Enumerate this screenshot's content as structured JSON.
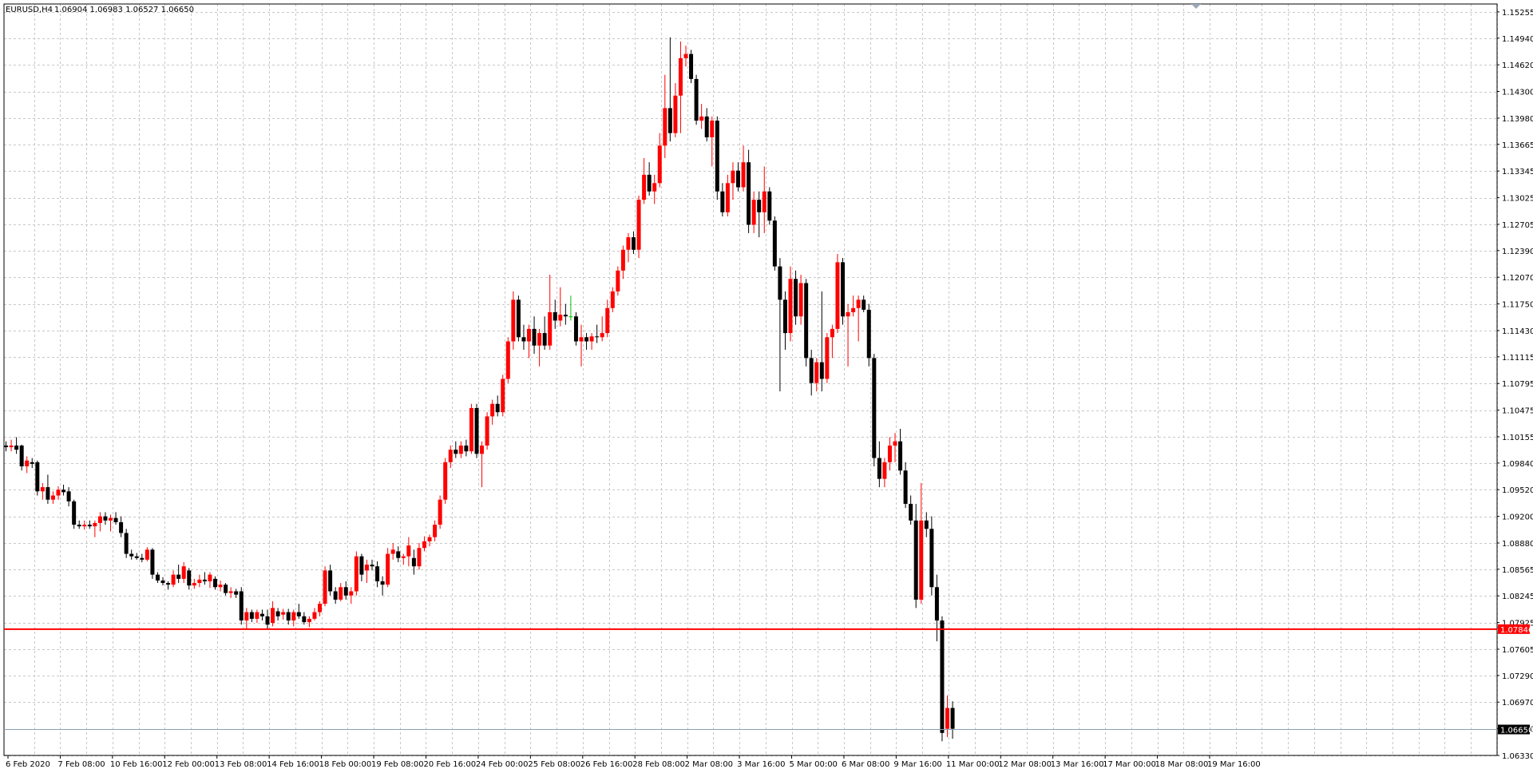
{
  "header": {
    "symbol": "EURUSD,H4",
    "ohlc": "1.06904 1.06983 1.06527 1.06650"
  },
  "price_tags": {
    "bid_line_label": "1.07846",
    "last_price_label": "1.06650"
  },
  "colors": {
    "background": "#ffffff",
    "grid": "#c8c8c8",
    "bull_candle": "#ff0000",
    "bear_candle": "#000000",
    "doji_candle": "#00c000",
    "horizontal_line": "#ff0000",
    "last_price_line": "#8aa0b4"
  },
  "chart_data": {
    "type": "candlestick",
    "title": "",
    "symbol": "EURUSD",
    "timeframe": "H4",
    "ylim": [
      1.0633,
      1.1535
    ],
    "y_ticks": [
      "1.15255",
      "1.14940",
      "1.14620",
      "1.14300",
      "1.13980",
      "1.13665",
      "1.13345",
      "1.13025",
      "1.12705",
      "1.12390",
      "1.12070",
      "1.11750",
      "1.11430",
      "1.11115",
      "1.10795",
      "1.10475",
      "1.10155",
      "1.09840",
      "1.09520",
      "1.09200",
      "1.08880",
      "1.08565",
      "1.08245",
      "1.07925",
      "1.07605",
      "1.07290",
      "1.06970",
      "1.06650",
      "1.06330"
    ],
    "x_ticks": [
      "6 Feb 2020",
      "7 Feb 08:00",
      "10 Feb 16:00",
      "12 Feb 00:00",
      "13 Feb 08:00",
      "14 Feb 16:00",
      "18 Feb 00:00",
      "19 Feb 08:00",
      "20 Feb 16:00",
      "24 Feb 00:00",
      "25 Feb 08:00",
      "26 Feb 16:00",
      "28 Feb 08:00",
      "2 Mar 08:00",
      "3 Mar 16:00",
      "5 Mar 00:00",
      "6 Mar 08:00",
      "9 Mar 16:00",
      "11 Mar 00:00",
      "12 Mar 08:00",
      "13 Mar 16:00",
      "17 Mar 00:00",
      "18 Mar 08:00",
      "19 Mar 16:00"
    ],
    "horizontal_line": 1.07846,
    "last_price": 1.0665,
    "grid": true,
    "candles": [
      [
        1.1005,
        1.101,
        1.0998,
        1.1003
      ],
      [
        1.1003,
        1.1012,
        1.0998,
        1.1005
      ],
      [
        1.1005,
        1.1015,
        1.0995,
        1.1
      ],
      [
        1.1005,
        1.1006,
        1.0975,
        1.098
      ],
      [
        1.098,
        1.0992,
        1.0972,
        1.0987
      ],
      [
        1.0985,
        1.099,
        1.0978,
        1.0983
      ],
      [
        1.0985,
        1.0987,
        1.0945,
        1.095
      ],
      [
        1.095,
        1.096,
        1.094,
        1.0955
      ],
      [
        1.0955,
        1.097,
        1.0935,
        1.094
      ],
      [
        1.094,
        1.095,
        1.0935,
        1.0945
      ],
      [
        1.0945,
        1.0956,
        1.094,
        1.0952
      ],
      [
        1.0952,
        1.0958,
        1.0945,
        1.0949
      ],
      [
        1.095,
        1.0955,
        1.0932,
        1.0938
      ],
      [
        1.0938,
        1.094,
        1.0905,
        1.091
      ],
      [
        1.091,
        1.0915,
        1.0905,
        1.0908
      ],
      [
        1.0908,
        1.0915,
        1.0904,
        1.091
      ],
      [
        1.091,
        1.0915,
        1.0905,
        1.0908
      ],
      [
        1.0908,
        1.0915,
        1.0895,
        1.0912
      ],
      [
        1.0912,
        1.0925,
        1.0902,
        1.092
      ],
      [
        1.092,
        1.0925,
        1.091,
        1.0915
      ],
      [
        1.0915,
        1.0922,
        1.0902,
        1.0918
      ],
      [
        1.0918,
        1.0925,
        1.091,
        1.0913
      ],
      [
        1.0913,
        1.092,
        1.0895,
        1.09
      ],
      [
        1.09,
        1.0905,
        1.087,
        1.0875
      ],
      [
        1.0875,
        1.088,
        1.0868,
        1.0872
      ],
      [
        1.0872,
        1.0876,
        1.0868,
        1.087
      ],
      [
        1.087,
        1.0875,
        1.0865,
        1.0868
      ],
      [
        1.0868,
        1.0883,
        1.0866,
        1.088
      ],
      [
        1.088,
        1.0882,
        1.0845,
        1.085
      ],
      [
        1.085,
        1.0853,
        1.084,
        1.0843
      ],
      [
        1.0843,
        1.0847,
        1.0837,
        1.084
      ],
      [
        1.084,
        1.0842,
        1.0832,
        1.0838
      ],
      [
        1.0838,
        1.0855,
        1.0835,
        1.085
      ],
      [
        1.085,
        1.0862,
        1.084,
        1.0845
      ],
      [
        1.0845,
        1.0865,
        1.084,
        1.086
      ],
      [
        1.0855,
        1.0858,
        1.0832,
        1.0837
      ],
      [
        1.0837,
        1.0845,
        1.0833,
        1.084
      ],
      [
        1.084,
        1.085,
        1.0835,
        1.0844
      ],
      [
        1.0844,
        1.0853,
        1.0838,
        1.0842
      ],
      [
        1.0842,
        1.0853,
        1.0834,
        1.085
      ],
      [
        1.0845,
        1.0848,
        1.0832,
        1.0835
      ],
      [
        1.0835,
        1.0843,
        1.083,
        1.0838
      ],
      [
        1.0838,
        1.084,
        1.0825,
        1.0828
      ],
      [
        1.0828,
        1.0835,
        1.0822,
        1.083
      ],
      [
        1.083,
        1.0833,
        1.0822,
        1.0826
      ],
      [
        1.083,
        1.0835,
        1.079,
        1.0795
      ],
      [
        1.0795,
        1.081,
        1.0785,
        1.0805
      ],
      [
        1.0805,
        1.0808,
        1.0793,
        1.0797
      ],
      [
        1.0797,
        1.0808,
        1.0792,
        1.0805
      ],
      [
        1.0803,
        1.0808,
        1.0795,
        1.08
      ],
      [
        1.08,
        1.0808,
        1.0785,
        1.079
      ],
      [
        1.0792,
        1.0818,
        1.0788,
        1.081
      ],
      [
        1.0806,
        1.081,
        1.0795,
        1.08
      ],
      [
        1.0802,
        1.0809,
        1.0796,
        1.0805
      ],
      [
        1.0805,
        1.0809,
        1.079,
        1.0795
      ],
      [
        1.0795,
        1.0808,
        1.0788,
        1.0805
      ],
      [
        1.0805,
        1.0815,
        1.0797,
        1.08
      ],
      [
        1.08,
        1.0805,
        1.079,
        1.0793
      ],
      [
        1.0793,
        1.08,
        1.0787,
        1.0797
      ],
      [
        1.0797,
        1.081,
        1.0795,
        1.0805
      ],
      [
        1.0805,
        1.0818,
        1.08,
        1.0815
      ],
      [
        1.0815,
        1.086,
        1.0812,
        1.0855
      ],
      [
        1.0855,
        1.0862,
        1.0825,
        1.083
      ],
      [
        1.083,
        1.0835,
        1.0815,
        1.082
      ],
      [
        1.082,
        1.084,
        1.0818,
        1.0835
      ],
      [
        1.0835,
        1.0842,
        1.082,
        1.0825
      ],
      [
        1.0825,
        1.0835,
        1.0815,
        1.083
      ],
      [
        1.083,
        1.0878,
        1.0825,
        1.0872
      ],
      [
        1.0872,
        1.0875,
        1.0842,
        1.085
      ],
      [
        1.0855,
        1.0868,
        1.084,
        1.0862
      ],
      [
        1.0862,
        1.0868,
        1.0855,
        1.086
      ],
      [
        1.086,
        1.0866,
        1.0835,
        1.0842
      ],
      [
        1.0842,
        1.0848,
        1.0825,
        1.0838
      ],
      [
        1.0838,
        1.0882,
        1.0835,
        1.0875
      ],
      [
        1.0875,
        1.0888,
        1.0868,
        1.088
      ],
      [
        1.0878,
        1.0884,
        1.0865,
        1.087
      ],
      [
        1.087,
        1.0875,
        1.0862,
        1.0872
      ],
      [
        1.0872,
        1.0895,
        1.086,
        1.0885
      ],
      [
        1.087,
        1.088,
        1.085,
        1.086
      ],
      [
        1.086,
        1.0888,
        1.0856,
        1.0882
      ],
      [
        1.0882,
        1.0896,
        1.0878,
        1.089
      ],
      [
        1.089,
        1.0898,
        1.0884,
        1.0895
      ],
      [
        1.0895,
        1.0915,
        1.089,
        1.091
      ],
      [
        1.091,
        1.0945,
        1.0905,
        1.094
      ],
      [
        1.094,
        1.099,
        1.0935,
        1.0985
      ],
      [
        1.0985,
        1.1005,
        1.0978,
        1.1
      ],
      [
        1.1,
        1.101,
        1.099,
        1.0995
      ],
      [
        1.0995,
        1.101,
        1.099,
        1.1005
      ],
      [
        1.1005,
        1.1012,
        1.0992,
        1.0998
      ],
      [
        1.0998,
        1.1055,
        1.0995,
        1.105
      ],
      [
        1.105,
        1.1055,
        1.099,
        1.0995
      ],
      [
        1.0995,
        1.101,
        1.0955,
        1.1005
      ],
      [
        1.1005,
        1.1045,
        1.1,
        1.104
      ],
      [
        1.104,
        1.106,
        1.103,
        1.1055
      ],
      [
        1.1055,
        1.1065,
        1.104,
        1.1045
      ],
      [
        1.1045,
        1.109,
        1.104,
        1.1085
      ],
      [
        1.1085,
        1.1135,
        1.108,
        1.113
      ],
      [
        1.113,
        1.119,
        1.112,
        1.118
      ],
      [
        1.118,
        1.1185,
        1.113,
        1.1135
      ],
      [
        1.1135,
        1.115,
        1.112,
        1.113
      ],
      [
        1.113,
        1.115,
        1.111,
        1.1145
      ],
      [
        1.1145,
        1.116,
        1.1115,
        1.1125
      ],
      [
        1.1125,
        1.1145,
        1.11,
        1.114
      ],
      [
        1.114,
        1.116,
        1.112,
        1.1125
      ],
      [
        1.1125,
        1.121,
        1.112,
        1.1165
      ],
      [
        1.1165,
        1.118,
        1.1145,
        1.1155
      ],
      [
        1.1155,
        1.1195,
        1.1148,
        1.1162
      ],
      [
        1.1162,
        1.1175,
        1.115,
        1.116
      ],
      [
        1.116,
        1.1185,
        1.1155,
        1.116
      ],
      [
        1.116,
        1.1165,
        1.1125,
        1.113
      ],
      [
        1.113,
        1.115,
        1.11,
        1.1135
      ],
      [
        1.1135,
        1.114,
        1.112,
        1.113
      ],
      [
        1.113,
        1.114,
        1.112,
        1.1136
      ],
      [
        1.1136,
        1.115,
        1.1128,
        1.1135
      ],
      [
        1.1135,
        1.116,
        1.113,
        1.114
      ],
      [
        1.114,
        1.118,
        1.1135,
        1.117
      ],
      [
        1.117,
        1.1195,
        1.1165,
        1.119
      ],
      [
        1.119,
        1.122,
        1.1185,
        1.1215
      ],
      [
        1.1215,
        1.1245,
        1.1205,
        1.124
      ],
      [
        1.124,
        1.126,
        1.1225,
        1.1255
      ],
      [
        1.1255,
        1.1262,
        1.1235,
        1.124
      ],
      [
        1.124,
        1.1305,
        1.123,
        1.13
      ],
      [
        1.13,
        1.135,
        1.1295,
        1.133
      ],
      [
        1.133,
        1.1345,
        1.1305,
        1.131
      ],
      [
        1.131,
        1.133,
        1.1295,
        1.132
      ],
      [
        1.132,
        1.138,
        1.1315,
        1.1365
      ],
      [
        1.1365,
        1.145,
        1.135,
        1.141
      ],
      [
        1.141,
        1.1495,
        1.137,
        1.138
      ],
      [
        1.138,
        1.144,
        1.1375,
        1.1425
      ],
      [
        1.1425,
        1.149,
        1.138,
        1.147
      ],
      [
        1.147,
        1.1485,
        1.146,
        1.1475
      ],
      [
        1.1475,
        1.148,
        1.144,
        1.1445
      ],
      [
        1.1445,
        1.145,
        1.139,
        1.1395
      ],
      [
        1.1395,
        1.1415,
        1.1385,
        1.14
      ],
      [
        1.14,
        1.141,
        1.137,
        1.1375
      ],
      [
        1.1375,
        1.14,
        1.134,
        1.1395
      ],
      [
        1.1395,
        1.14,
        1.13,
        1.131
      ],
      [
        1.131,
        1.132,
        1.128,
        1.1285
      ],
      [
        1.1285,
        1.133,
        1.128,
        1.132
      ],
      [
        1.132,
        1.1345,
        1.13,
        1.1335
      ],
      [
        1.1335,
        1.1345,
        1.131,
        1.1315
      ],
      [
        1.1315,
        1.1365,
        1.131,
        1.1345
      ],
      [
        1.1345,
        1.136,
        1.126,
        1.127
      ],
      [
        1.127,
        1.131,
        1.126,
        1.13
      ],
      [
        1.13,
        1.131,
        1.1255,
        1.1285
      ],
      [
        1.1285,
        1.134,
        1.126,
        1.131
      ],
      [
        1.131,
        1.1315,
        1.127,
        1.1275
      ],
      [
        1.1275,
        1.128,
        1.1215,
        1.122
      ],
      [
        1.122,
        1.123,
        1.107,
        1.118
      ],
      [
        1.118,
        1.119,
        1.112,
        1.114
      ],
      [
        1.114,
        1.122,
        1.113,
        1.1205
      ],
      [
        1.1205,
        1.1215,
        1.115,
        1.116
      ],
      [
        1.116,
        1.121,
        1.115,
        1.12
      ],
      [
        1.12,
        1.1205,
        1.11,
        1.111
      ],
      [
        1.111,
        1.112,
        1.1065,
        1.108
      ],
      [
        1.108,
        1.111,
        1.107,
        1.1105
      ],
      [
        1.1105,
        1.119,
        1.107,
        1.1085
      ],
      [
        1.1085,
        1.114,
        1.108,
        1.1135
      ],
      [
        1.1135,
        1.115,
        1.111,
        1.1145
      ],
      [
        1.1145,
        1.1235,
        1.114,
        1.1225
      ],
      [
        1.1225,
        1.123,
        1.115,
        1.116
      ],
      [
        1.116,
        1.1175,
        1.11,
        1.1165
      ],
      [
        1.1165,
        1.1185,
        1.116,
        1.117
      ],
      [
        1.117,
        1.1185,
        1.113,
        1.118
      ],
      [
        1.118,
        1.1185,
        1.1165,
        1.1168
      ],
      [
        1.1168,
        1.1175,
        1.11,
        1.111
      ],
      [
        1.111,
        1.1115,
        1.098,
        1.099
      ],
      [
        1.099,
        1.101,
        1.0955,
        1.0965
      ],
      [
        1.0965,
        1.099,
        1.0955,
        1.0985
      ],
      [
        1.0985,
        1.1015,
        1.0975,
        1.1005
      ],
      [
        1.1005,
        1.102,
        1.0985,
        1.101
      ],
      [
        1.101,
        1.1025,
        1.097,
        1.0975
      ],
      [
        1.0975,
        1.0985,
        1.093,
        1.0935
      ],
      [
        1.0935,
        1.0945,
        1.091,
        1.0915
      ],
      [
        1.0915,
        1.0935,
        1.081,
        1.082
      ],
      [
        1.082,
        1.096,
        1.0815,
        1.0915
      ],
      [
        1.0915,
        1.0925,
        1.0895,
        1.0905
      ],
      [
        1.0905,
        1.092,
        1.0825,
        1.0835
      ],
      [
        1.0835,
        1.085,
        1.077,
        1.0795
      ],
      [
        1.0795,
        1.08,
        1.065,
        1.066
      ],
      [
        1.0665,
        1.0705,
        1.0655,
        1.069
      ],
      [
        1.069,
        1.0698,
        1.0653,
        1.0665
      ]
    ]
  }
}
